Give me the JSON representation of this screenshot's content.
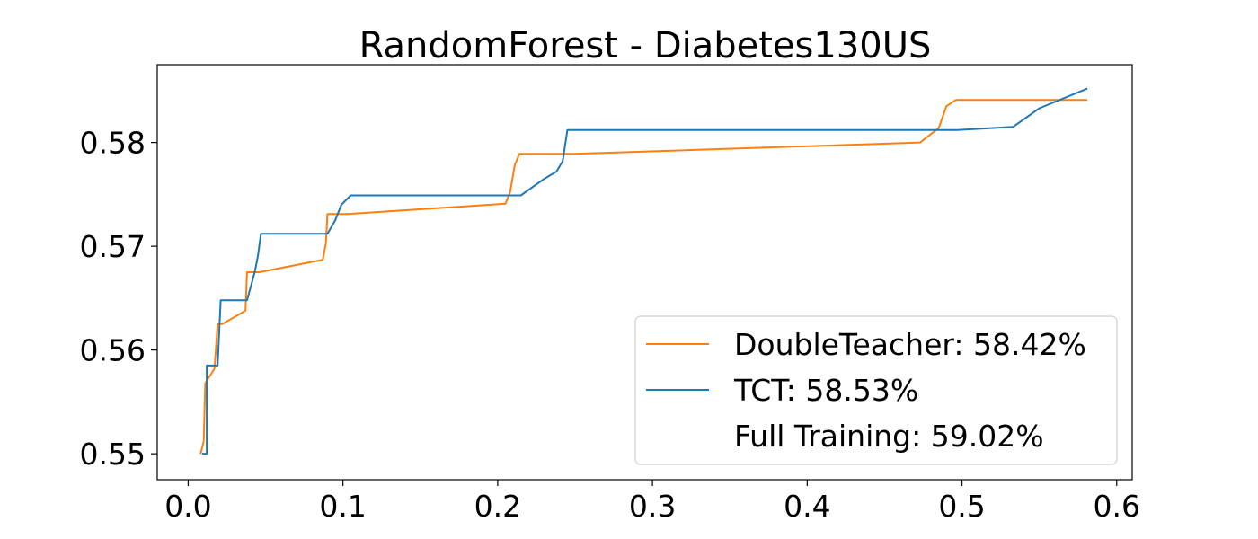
{
  "chart_data": {
    "type": "line",
    "title": "RandomForest - Diabetes130US",
    "xlabel": "",
    "ylabel": "",
    "xlim": [
      -0.02,
      0.61
    ],
    "ylim": [
      0.5475,
      0.5875
    ],
    "x_ticks": [
      0.0,
      0.1,
      0.2,
      0.3,
      0.4,
      0.5,
      0.6
    ],
    "x_tick_labels": [
      "0.0",
      "0.1",
      "0.2",
      "0.3",
      "0.4",
      "0.5",
      "0.6"
    ],
    "y_ticks": [
      0.55,
      0.56,
      0.57,
      0.58
    ],
    "y_tick_labels": [
      "0.55",
      "0.56",
      "0.57",
      "0.58"
    ],
    "grid": false,
    "legend_position": "lower-right",
    "series": [
      {
        "name": "DoubleTeacher: 58.42%",
        "color": "#ff7f0e",
        "points": [
          [
            0.008,
            0.55
          ],
          [
            0.01,
            0.5512
          ],
          [
            0.011,
            0.5568
          ],
          [
            0.017,
            0.5582
          ],
          [
            0.019,
            0.5625
          ],
          [
            0.022,
            0.5625
          ],
          [
            0.037,
            0.5638
          ],
          [
            0.038,
            0.5675
          ],
          [
            0.046,
            0.5675
          ],
          [
            0.087,
            0.5687
          ],
          [
            0.089,
            0.5703
          ],
          [
            0.09,
            0.5731
          ],
          [
            0.103,
            0.5731
          ],
          [
            0.205,
            0.5741
          ],
          [
            0.208,
            0.5752
          ],
          [
            0.211,
            0.5778
          ],
          [
            0.214,
            0.5789
          ],
          [
            0.25,
            0.5789
          ],
          [
            0.473,
            0.58
          ],
          [
            0.485,
            0.5814
          ],
          [
            0.49,
            0.5835
          ],
          [
            0.496,
            0.5841
          ],
          [
            0.581,
            0.5841
          ]
        ]
      },
      {
        "name": "TCT: 58.53%",
        "color": "#1f77b4",
        "points": [
          [
            0.009,
            0.55
          ],
          [
            0.012,
            0.55
          ],
          [
            0.012,
            0.5585
          ],
          [
            0.019,
            0.5585
          ],
          [
            0.021,
            0.5648
          ],
          [
            0.038,
            0.5648
          ],
          [
            0.043,
            0.5675
          ],
          [
            0.045,
            0.569
          ],
          [
            0.047,
            0.5712
          ],
          [
            0.09,
            0.5712
          ],
          [
            0.095,
            0.5725
          ],
          [
            0.099,
            0.574
          ],
          [
            0.105,
            0.5749
          ],
          [
            0.215,
            0.5749
          ],
          [
            0.23,
            0.5765
          ],
          [
            0.238,
            0.5772
          ],
          [
            0.242,
            0.5782
          ],
          [
            0.245,
            0.5812
          ],
          [
            0.497,
            0.5812
          ],
          [
            0.533,
            0.5815
          ],
          [
            0.55,
            0.5833
          ],
          [
            0.581,
            0.5852
          ]
        ]
      },
      {
        "name": "Full Training: 59.02%",
        "color": "#ffffff",
        "points": []
      }
    ]
  }
}
